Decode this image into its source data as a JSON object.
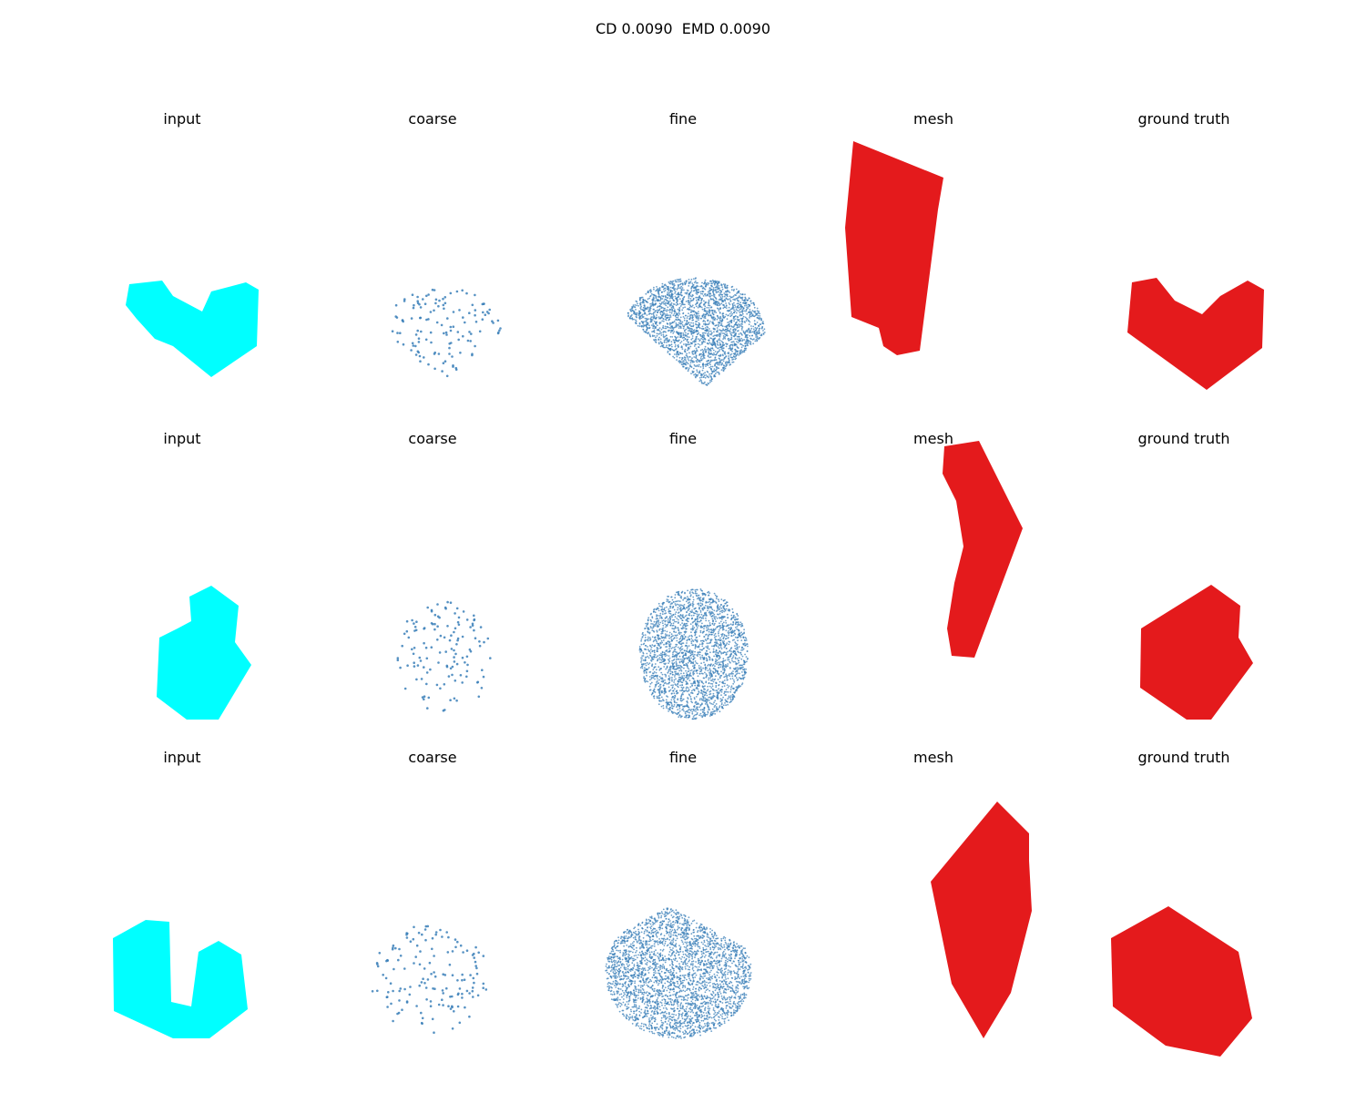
{
  "figure": {
    "title": "CD 0.0090  EMD 0.0090"
  },
  "colors": {
    "input": "#00ffff",
    "coarse": "#3a7fb8",
    "fine": "#3a7fb8",
    "mesh": "#e41a1c",
    "ground_truth": "#e41a1c"
  },
  "rows": [
    {
      "panels": [
        {
          "title": "input",
          "kind": "input"
        },
        {
          "title": "coarse",
          "kind": "coarse"
        },
        {
          "title": "fine",
          "kind": "fine"
        },
        {
          "title": "mesh",
          "kind": "mesh"
        },
        {
          "title": "ground truth",
          "kind": "ground_truth"
        }
      ]
    },
    {
      "panels": [
        {
          "title": "input",
          "kind": "input"
        },
        {
          "title": "coarse",
          "kind": "coarse"
        },
        {
          "title": "fine",
          "kind": "fine"
        },
        {
          "title": "mesh",
          "kind": "mesh"
        },
        {
          "title": "ground truth",
          "kind": "ground_truth"
        }
      ]
    },
    {
      "panels": [
        {
          "title": "input",
          "kind": "input"
        },
        {
          "title": "coarse",
          "kind": "coarse"
        },
        {
          "title": "fine",
          "kind": "fine"
        },
        {
          "title": "mesh",
          "kind": "mesh"
        },
        {
          "title": "ground truth",
          "kind": "ground_truth"
        }
      ]
    }
  ]
}
